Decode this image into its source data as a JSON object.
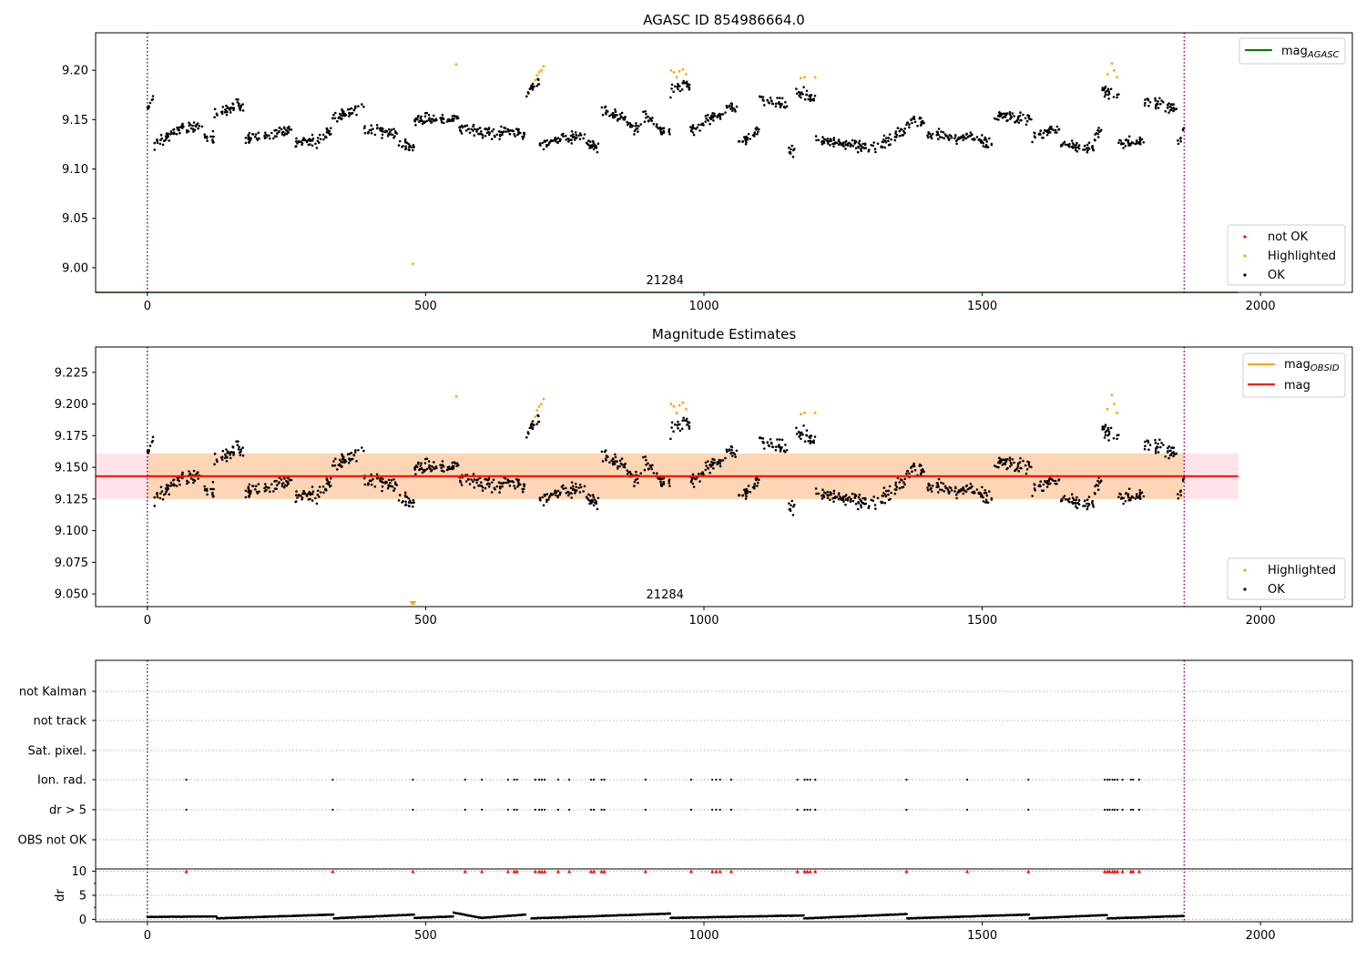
{
  "chart_data": [
    {
      "type": "scatter",
      "title": "AGASC ID 854986664.0",
      "xlim": [
        -93,
        2165
      ],
      "ylim": [
        8.975,
        9.238
      ],
      "x_ticks": [
        0,
        500,
        1000,
        1500,
        2000
      ],
      "y_ticks": [
        9.0,
        9.05,
        9.1,
        9.15,
        9.2
      ],
      "y_tick_labels": [
        "9.00",
        "9.05",
        "9.10",
        "9.15",
        "9.20"
      ],
      "obsid_label": "21284",
      "obsid_label_x": 930,
      "obsid_span": [
        0,
        1863
      ],
      "agasc_mag": 8.975,
      "agasc_line_x": [
        -93,
        1960
      ],
      "legend_lines": [
        {
          "name": "mag",
          "subscript": "AGASC",
          "color": "#008000"
        }
      ],
      "legend_points": [
        {
          "name": "not OK",
          "color": "#ff0000"
        },
        {
          "name": "Highlighted",
          "color": "#ffa500"
        },
        {
          "name": "OK",
          "color": "#000000"
        }
      ],
      "highlighted_points": [
        [
          477,
          9.004
        ],
        [
          555,
          9.206
        ],
        [
          697,
          9.19
        ],
        [
          700,
          9.195
        ],
        [
          704,
          9.198
        ],
        [
          708,
          9.2
        ],
        [
          712,
          9.204
        ],
        [
          941,
          9.2
        ],
        [
          946,
          9.198
        ],
        [
          951,
          9.193
        ],
        [
          956,
          9.199
        ],
        [
          962,
          9.201
        ],
        [
          968,
          9.196
        ],
        [
          1174,
          9.192
        ],
        [
          1181,
          9.193
        ],
        [
          1200,
          9.193
        ],
        [
          1725,
          9.196
        ],
        [
          1733,
          9.207
        ],
        [
          1737,
          9.2
        ],
        [
          1742,
          9.193
        ]
      ],
      "trend_segments": [
        {
          "x0": 0,
          "x1": 12,
          "y0": 9.16,
          "y1": 9.175
        },
        {
          "x0": 12,
          "x1": 40,
          "y0": 9.125,
          "y1": 9.135
        },
        {
          "x0": 40,
          "x1": 70,
          "y0": 9.135,
          "y1": 9.145
        },
        {
          "x0": 70,
          "x1": 100,
          "y0": 9.14,
          "y1": 9.145
        },
        {
          "x0": 100,
          "x1": 120,
          "y0": 9.135,
          "y1": 9.13
        },
        {
          "x0": 120,
          "x1": 165,
          "y0": 9.155,
          "y1": 9.165
        },
        {
          "x0": 165,
          "x1": 175,
          "y0": 9.16,
          "y1": 9.165
        },
        {
          "x0": 175,
          "x1": 260,
          "y0": 9.13,
          "y1": 9.14
        },
        {
          "x0": 260,
          "x1": 300,
          "y0": 9.125,
          "y1": 9.13
        },
        {
          "x0": 300,
          "x1": 330,
          "y0": 9.125,
          "y1": 9.14
        },
        {
          "x0": 330,
          "x1": 390,
          "y0": 9.15,
          "y1": 9.165
        },
        {
          "x0": 390,
          "x1": 450,
          "y0": 9.14,
          "y1": 9.135
        },
        {
          "x0": 450,
          "x1": 480,
          "y0": 9.125,
          "y1": 9.12
        },
        {
          "x0": 480,
          "x1": 560,
          "y0": 9.15,
          "y1": 9.152
        },
        {
          "x0": 560,
          "x1": 640,
          "y0": 9.14,
          "y1": 9.135
        },
        {
          "x0": 640,
          "x1": 680,
          "y0": 9.14,
          "y1": 9.135
        },
        {
          "x0": 680,
          "x1": 705,
          "y0": 9.175,
          "y1": 9.19
        },
        {
          "x0": 705,
          "x1": 780,
          "y0": 9.125,
          "y1": 9.135
        },
        {
          "x0": 780,
          "x1": 815,
          "y0": 9.13,
          "y1": 9.12
        },
        {
          "x0": 815,
          "x1": 860,
          "y0": 9.16,
          "y1": 9.15
        },
        {
          "x0": 860,
          "x1": 890,
          "y0": 9.145,
          "y1": 9.14
        },
        {
          "x0": 890,
          "x1": 910,
          "y0": 9.155,
          "y1": 9.15
        },
        {
          "x0": 910,
          "x1": 940,
          "y0": 9.14,
          "y1": 9.14
        },
        {
          "x0": 940,
          "x1": 975,
          "y0": 9.18,
          "y1": 9.185
        },
        {
          "x0": 975,
          "x1": 1000,
          "y0": 9.14,
          "y1": 9.145
        },
        {
          "x0": 1000,
          "x1": 1040,
          "y0": 9.15,
          "y1": 9.155
        },
        {
          "x0": 1040,
          "x1": 1060,
          "y0": 9.165,
          "y1": 9.16
        },
        {
          "x0": 1060,
          "x1": 1100,
          "y0": 9.125,
          "y1": 9.14
        },
        {
          "x0": 1100,
          "x1": 1150,
          "y0": 9.17,
          "y1": 9.165
        },
        {
          "x0": 1150,
          "x1": 1165,
          "y0": 9.12,
          "y1": 9.115
        },
        {
          "x0": 1165,
          "x1": 1200,
          "y0": 9.18,
          "y1": 9.17
        },
        {
          "x0": 1200,
          "x1": 1320,
          "y0": 9.13,
          "y1": 9.12
        },
        {
          "x0": 1320,
          "x1": 1370,
          "y0": 9.125,
          "y1": 9.145
        },
        {
          "x0": 1370,
          "x1": 1400,
          "y0": 9.15,
          "y1": 9.145
        },
        {
          "x0": 1400,
          "x1": 1500,
          "y0": 9.135,
          "y1": 9.13
        },
        {
          "x0": 1500,
          "x1": 1520,
          "y0": 9.125,
          "y1": 9.125
        },
        {
          "x0": 1520,
          "x1": 1590,
          "y0": 9.155,
          "y1": 9.15
        },
        {
          "x0": 1590,
          "x1": 1640,
          "y0": 9.135,
          "y1": 9.14
        },
        {
          "x0": 1640,
          "x1": 1700,
          "y0": 9.125,
          "y1": 9.12
        },
        {
          "x0": 1700,
          "x1": 1715,
          "y0": 9.13,
          "y1": 9.14
        },
        {
          "x0": 1715,
          "x1": 1745,
          "y0": 9.18,
          "y1": 9.175
        },
        {
          "x0": 1745,
          "x1": 1790,
          "y0": 9.125,
          "y1": 9.13
        },
        {
          "x0": 1790,
          "x1": 1850,
          "y0": 9.17,
          "y1": 9.16
        },
        {
          "x0": 1850,
          "x1": 1863,
          "y0": 9.125,
          "y1": 9.14
        }
      ]
    },
    {
      "type": "scatter",
      "title": "Magnitude Estimates",
      "xlim": [
        -93,
        2165
      ],
      "ylim": [
        9.04,
        9.245
      ],
      "x_ticks": [
        0,
        500,
        1000,
        1500,
        2000
      ],
      "y_ticks": [
        9.05,
        9.075,
        9.1,
        9.125,
        9.15,
        9.175,
        9.2,
        9.225
      ],
      "y_tick_labels": [
        "9.050",
        "9.075",
        "9.100",
        "9.125",
        "9.150",
        "9.175",
        "9.200",
        "9.225"
      ],
      "obsid_label": "21284",
      "obsid_label_x": 930,
      "obsid_span": [
        0,
        1863
      ],
      "mean_mag": 9.143,
      "mean_line_x": [
        -93,
        1960
      ],
      "band_outer": [
        9.125,
        9.161
      ],
      "band_inner": [
        9.125,
        9.161
      ],
      "band_inner_x": [
        0,
        1863
      ],
      "legend_lines": [
        {
          "name": "mag",
          "subscript": "OBSID",
          "color": "#ffa500"
        },
        {
          "name": "mag",
          "subscript": "",
          "color": "#ff0000"
        }
      ],
      "legend_points": [
        {
          "name": "Highlighted",
          "color": "#ffa500"
        },
        {
          "name": "OK",
          "color": "#000000"
        }
      ],
      "offscale_marker_x": 477
    },
    {
      "type": "scatter",
      "title": "",
      "xlim": [
        -93,
        2165
      ],
      "x_ticks": [
        0,
        500,
        1000,
        1500,
        2000
      ],
      "flag_rows": [
        "not Kalman",
        "not track",
        "Sat. pixel.",
        "Ion. rad.",
        "dr > 5",
        "OBS not OK"
      ],
      "flag_events_x": [
        70,
        333,
        477,
        571,
        601,
        648,
        659,
        664,
        697,
        704,
        709,
        714,
        738,
        758,
        797,
        802,
        816,
        821,
        895,
        977,
        1015,
        1022,
        1029,
        1049,
        1168,
        1181,
        1186,
        1191,
        1200,
        1364,
        1473,
        1583,
        1720,
        1725,
        1729,
        1734,
        1738,
        1743,
        1752,
        1767,
        1771,
        1782
      ],
      "dr_ylabel": "dr",
      "dr_ticks": [
        0,
        5,
        10
      ],
      "dr_ylim": [
        -0.5,
        10.5
      ],
      "dr_threshold": 10,
      "dr_segments": [
        {
          "x0": 0,
          "x1": 125,
          "y0": 0.5,
          "y1": 0.6
        },
        {
          "x0": 125,
          "x1": 335,
          "y0": 0.2,
          "y1": 1.0
        },
        {
          "x0": 335,
          "x1": 480,
          "y0": 0.2,
          "y1": 1.0
        },
        {
          "x0": 480,
          "x1": 550,
          "y0": 0.3,
          "y1": 0.6
        },
        {
          "x0": 550,
          "x1": 600,
          "y0": 1.4,
          "y1": 0.3
        },
        {
          "x0": 600,
          "x1": 680,
          "y0": 0.3,
          "y1": 1.0
        },
        {
          "x0": 690,
          "x1": 940,
          "y0": 0.2,
          "y1": 1.2
        },
        {
          "x0": 940,
          "x1": 1180,
          "y0": 0.3,
          "y1": 0.8
        },
        {
          "x0": 1180,
          "x1": 1365,
          "y0": 0.2,
          "y1": 1.1
        },
        {
          "x0": 1365,
          "x1": 1585,
          "y0": 0.2,
          "y1": 1.0
        },
        {
          "x0": 1585,
          "x1": 1725,
          "y0": 0.2,
          "y1": 0.9
        },
        {
          "x0": 1725,
          "x1": 1863,
          "y0": 0.2,
          "y1": 0.7
        }
      ]
    }
  ]
}
